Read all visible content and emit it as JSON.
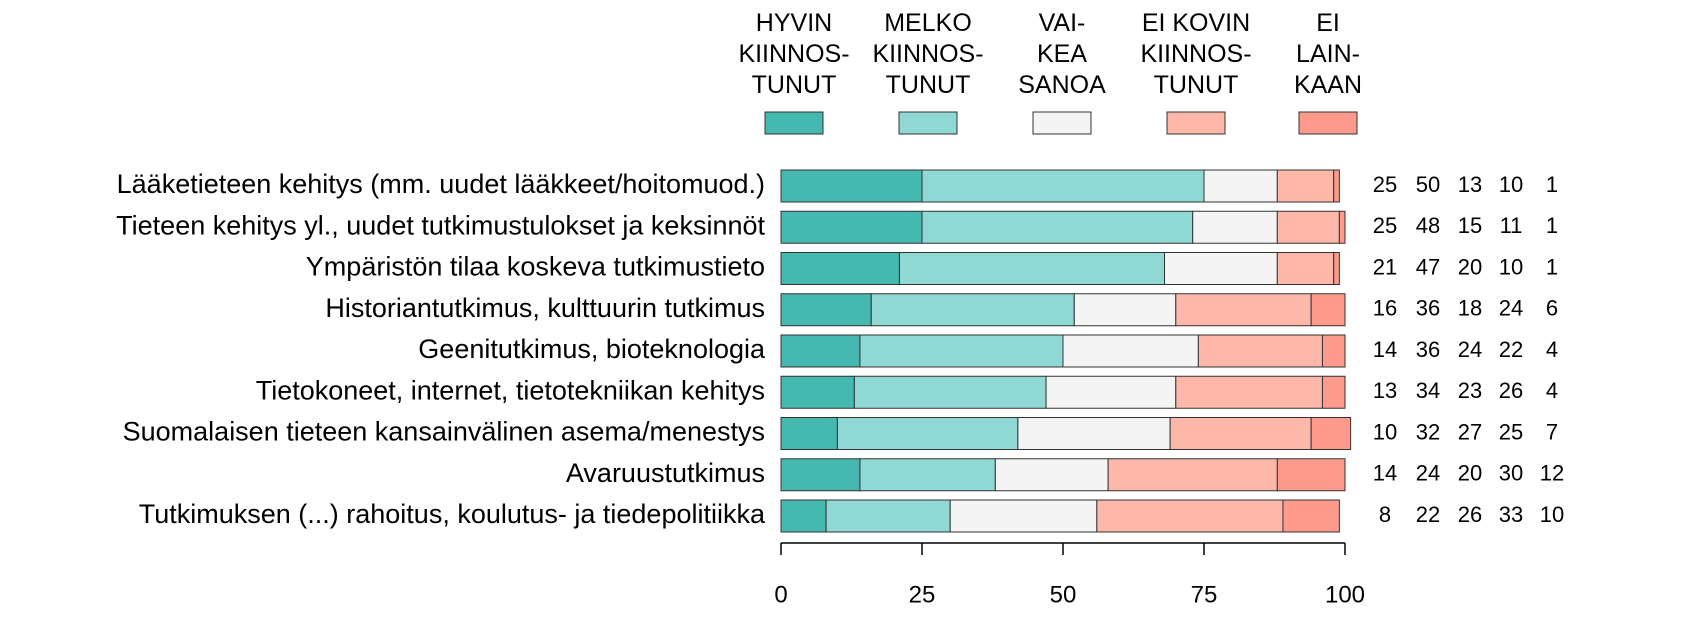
{
  "chart_data": {
    "type": "stacked_bar_horizontal",
    "categories": [
      "Lääketieteen kehitys (mm. uudet lääkkeet/hoitomuod.)",
      "Tieteen kehitys yl., uudet tutkimustulokset ja keksinnöt",
      "Ympäristön tilaa koskeva tutkimustieto",
      "Historiantutkimus, kulttuurin tutkimus",
      "Geenitutkimus, bioteknologia",
      "Tietokoneet, internet, tietotekniikan kehitys",
      "Suomalaisen tieteen kansainvälinen asema/menestys",
      "Avaruustutkimus",
      "Tutkimuksen (...) rahoitus, koulutus- ja tiedepolitiikka"
    ],
    "series": [
      {
        "name": "HYVIN\nKIINNOS-\nTUNUT",
        "color": "#45b8b0",
        "values": [
          25,
          25,
          21,
          16,
          14,
          13,
          10,
          14,
          8
        ]
      },
      {
        "name": "MELKO\nKIINNOS-\nTUNUT",
        "color": "#8fd8d3",
        "values": [
          50,
          48,
          47,
          36,
          36,
          34,
          32,
          24,
          22
        ]
      },
      {
        "name": "VAI-\nKEA\nSANOA",
        "color": "#f4f4f4",
        "values": [
          13,
          15,
          20,
          18,
          24,
          23,
          27,
          20,
          26
        ]
      },
      {
        "name": "EI KOVIN\nKIINNOS-\nTUNUT",
        "color": "#fdb8aa",
        "values": [
          10,
          11,
          10,
          24,
          22,
          26,
          25,
          30,
          33
        ]
      },
      {
        "name": "EI\nLAIN-\nKAAN",
        "color": "#fd9a8c",
        "values": [
          1,
          1,
          1,
          6,
          4,
          4,
          7,
          12,
          10
        ]
      }
    ],
    "xlim": [
      0,
      100
    ],
    "xticks": [
      0,
      25,
      50,
      75,
      100
    ],
    "grid": false,
    "legend": "top"
  }
}
